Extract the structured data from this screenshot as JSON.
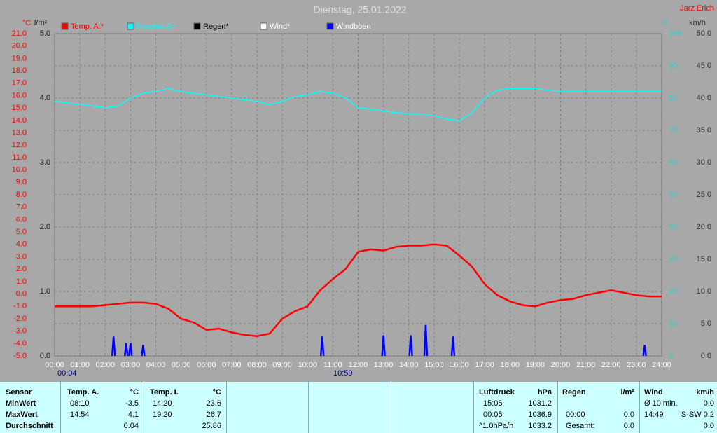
{
  "chart_data": {
    "type": "line",
    "title": "Dienstag, 25.01.2022",
    "author": "Jarz Erich",
    "axes": [
      {
        "label": "°C",
        "color": "#ff0000",
        "lim": [
          -5,
          21
        ],
        "ticks": [
          {
            "value": -5,
            "label": "-5.0"
          },
          {
            "value": -4,
            "label": "-4.0"
          },
          {
            "value": -3,
            "label": "-3.0"
          },
          {
            "value": -2,
            "label": "-2.0"
          },
          {
            "value": -1,
            "label": "-1.0"
          },
          {
            "value": 0,
            "label": "0.0"
          },
          {
            "value": 1,
            "label": "1.0"
          },
          {
            "value": 2,
            "label": "2.0"
          },
          {
            "value": 3,
            "label": "3.0"
          },
          {
            "value": 4,
            "label": "4.0"
          },
          {
            "value": 5,
            "label": "5.0"
          },
          {
            "value": 6,
            "label": "6.0"
          },
          {
            "value": 7,
            "label": "7.0"
          },
          {
            "value": 8,
            "label": "8.0"
          },
          {
            "value": 9,
            "label": "9.0"
          },
          {
            "value": 10,
            "label": "10.0"
          },
          {
            "value": 11,
            "label": "11.0"
          },
          {
            "value": 12,
            "label": "12.0"
          },
          {
            "value": 13,
            "label": "13.0"
          },
          {
            "value": 14,
            "label": "14.0"
          },
          {
            "value": 15,
            "label": "15.0"
          },
          {
            "value": 16,
            "label": "16.0"
          },
          {
            "value": 17,
            "label": "17.0"
          },
          {
            "value": 18,
            "label": "18.0"
          },
          {
            "value": 19,
            "label": "19.0"
          },
          {
            "value": 20,
            "label": "20.0"
          },
          {
            "value": 21,
            "label": "21.0"
          }
        ]
      },
      {
        "label": "l/m²",
        "color": "#202020",
        "lim": [
          0,
          5
        ],
        "ticks": [
          {
            "value": 0,
            "label": "0.0"
          },
          {
            "value": 1,
            "label": "1.0"
          },
          {
            "value": 2,
            "label": "2.0"
          },
          {
            "value": 3,
            "label": "3.0"
          },
          {
            "value": 4,
            "label": "4.0"
          },
          {
            "value": 5,
            "label": "5.0"
          }
        ]
      },
      {
        "label": "%",
        "color": "#40c8c8",
        "lim": [
          0,
          100
        ],
        "ticks": [
          0,
          10,
          20,
          30,
          40,
          50,
          60,
          70,
          80,
          90,
          100
        ]
      },
      {
        "label": "km/h",
        "color": "#303030",
        "lim": [
          0,
          50
        ],
        "ticks": [
          {
            "value": 0,
            "label": "0.0"
          },
          {
            "value": 5,
            "label": "5.0"
          },
          {
            "value": 10,
            "label": "10.0"
          },
          {
            "value": 15,
            "label": "15.0"
          },
          {
            "value": 20,
            "label": "20.0"
          },
          {
            "value": 25,
            "label": "25.0"
          },
          {
            "value": 30,
            "label": "30.0"
          },
          {
            "value": 35,
            "label": "35.0"
          },
          {
            "value": 40,
            "label": "40.0"
          },
          {
            "value": 45,
            "label": "45.0"
          },
          {
            "value": 50,
            "label": "50.0"
          }
        ]
      }
    ],
    "xlim": [
      0,
      24
    ],
    "xticks": [
      {
        "value": 0,
        "label": "00:00"
      },
      {
        "value": 1,
        "label": "01:00"
      },
      {
        "value": 2,
        "label": "02:00"
      },
      {
        "value": 3,
        "label": "03:00"
      },
      {
        "value": 4,
        "label": "04:00"
      },
      {
        "value": 5,
        "label": "05:00"
      },
      {
        "value": 6,
        "label": "06:00"
      },
      {
        "value": 7,
        "label": "07:00"
      },
      {
        "value": 8,
        "label": "08:00"
      },
      {
        "value": 9,
        "label": "09:00"
      },
      {
        "value": 10,
        "label": "10:00"
      },
      {
        "value": 11,
        "label": "11:00"
      },
      {
        "value": 12,
        "label": "12:00"
      },
      {
        "value": 13,
        "label": "13:00"
      },
      {
        "value": 14,
        "label": "14:00"
      },
      {
        "value": 15,
        "label": "15:00"
      },
      {
        "value": 16,
        "label": "16:00"
      },
      {
        "value": 17,
        "label": "17:00"
      },
      {
        "value": 18,
        "label": "18:00"
      },
      {
        "value": 19,
        "label": "19:00"
      },
      {
        "value": 20,
        "label": "20:00"
      },
      {
        "value": 21,
        "label": "21:00"
      },
      {
        "value": 22,
        "label": "22:00"
      },
      {
        "value": 23,
        "label": "23:00"
      },
      {
        "value": 24,
        "label": "24:00"
      }
    ],
    "grid": true,
    "annotations": [
      "00:04",
      "10:59"
    ],
    "series": [
      {
        "name": "Temp. A.*",
        "color": "#ff0000",
        "axis": 0,
        "style": "line",
        "x": [
          0,
          0.5,
          1,
          1.5,
          2,
          2.5,
          3,
          3.5,
          4,
          4.5,
          5,
          5.5,
          6,
          6.5,
          7,
          7.5,
          8,
          8.5,
          9,
          9.5,
          10,
          10.5,
          11,
          11.5,
          12,
          12.5,
          13,
          13.5,
          14,
          14.5,
          15,
          15.5,
          16,
          16.5,
          17,
          17.5,
          18,
          18.5,
          19,
          19.5,
          20,
          20.5,
          21,
          21.5,
          22,
          22.5,
          23,
          23.5,
          24
        ],
        "values": [
          -1.0,
          -1.0,
          -1.0,
          -1.0,
          -0.9,
          -0.8,
          -0.7,
          -0.7,
          -0.8,
          -1.2,
          -2.0,
          -2.3,
          -2.9,
          -2.8,
          -3.1,
          -3.3,
          -3.4,
          -3.2,
          -2.0,
          -1.4,
          -1.0,
          0.3,
          1.2,
          2.0,
          3.4,
          3.6,
          3.5,
          3.8,
          3.9,
          3.9,
          4.0,
          3.9,
          3.1,
          2.2,
          0.8,
          -0.1,
          -0.6,
          -0.9,
          -1.0,
          -0.7,
          -0.5,
          -0.4,
          -0.1,
          0.1,
          0.3,
          0.1,
          -0.1,
          -0.2,
          -0.2
        ]
      },
      {
        "name": "Feuchte A.*",
        "color": "#00ffff",
        "axis": 2,
        "style": "line",
        "x": [
          0,
          0.5,
          1,
          1.5,
          2,
          2.5,
          3,
          3.5,
          4,
          4.5,
          5,
          5.5,
          6,
          6.5,
          7,
          7.5,
          8,
          8.5,
          9,
          9.5,
          10,
          10.5,
          11,
          11.5,
          12,
          12.5,
          13,
          13.5,
          14,
          14.5,
          15,
          15.5,
          16,
          16.5,
          17,
          17.5,
          18,
          18.5,
          19,
          19.5,
          20,
          20.5,
          21,
          21.5,
          22,
          22.5,
          23,
          23.5,
          24
        ],
        "values": [
          79,
          78.5,
          78,
          77.5,
          77,
          77.5,
          80,
          81.5,
          82,
          83,
          82,
          81.5,
          81,
          80.5,
          80,
          79.5,
          79,
          78,
          79,
          80.5,
          81,
          82,
          81.5,
          80,
          77,
          76.5,
          76,
          75.5,
          75,
          75,
          74.5,
          73.5,
          73,
          75.5,
          80,
          82.5,
          83,
          83,
          83,
          82.5,
          82,
          82,
          82,
          82,
          82,
          82,
          82,
          82,
          82
        ]
      },
      {
        "name": "Regen*",
        "color": "#000000",
        "axis": 1,
        "style": "line",
        "x": [],
        "values": []
      },
      {
        "name": "Wind*",
        "color": "#ffffff",
        "axis": 3,
        "style": "line",
        "x": [],
        "values": []
      },
      {
        "name": "Windböen",
        "color": "#0000ff",
        "axis": 3,
        "style": "spike",
        "x": [
          2.33,
          2.83,
          3.0,
          3.5,
          10.58,
          13.0,
          14.08,
          14.67,
          15.75,
          23.33
        ],
        "values": [
          3.0,
          2.0,
          2.0,
          1.7,
          3.0,
          3.2,
          3.2,
          4.8,
          3.0,
          1.7
        ]
      }
    ]
  },
  "table": {
    "header": [
      "Sensor",
      "Temp. A.",
      "°C",
      "Temp. I.",
      "°C",
      "Luftdruck",
      "hPa",
      "Regen",
      "l/m²",
      "Wind",
      "km/h"
    ],
    "rows": [
      [
        "MinWert",
        "08:10",
        "-3.5",
        "14:20",
        "23.6",
        "15:05",
        "1031.2",
        null,
        null,
        "Ø 10 min.",
        "0.0"
      ],
      [
        "MaxWert",
        "14:54",
        "4.1",
        "19:20",
        "26.7",
        "00:05",
        "1036.9",
        "00:00",
        "0.0",
        "14:49",
        "S-SW 0.2"
      ],
      [
        "Durchschnitt",
        null,
        "0.04",
        null,
        "25.86",
        "^1.0hPa/h",
        "1033.2",
        "Gesamt:",
        "0.0",
        null,
        "0.0"
      ]
    ]
  }
}
